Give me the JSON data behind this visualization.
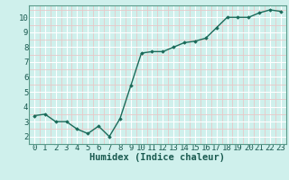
{
  "x": [
    0,
    1,
    2,
    3,
    4,
    5,
    6,
    7,
    8,
    9,
    10,
    11,
    12,
    13,
    14,
    15,
    16,
    17,
    18,
    19,
    20,
    21,
    22,
    23
  ],
  "y": [
    3.4,
    3.5,
    3.0,
    3.0,
    2.5,
    2.2,
    2.7,
    2.0,
    3.2,
    5.4,
    7.6,
    7.7,
    7.7,
    8.0,
    8.3,
    8.4,
    8.6,
    9.3,
    10.0,
    10.0,
    10.0,
    10.3,
    10.5,
    10.4
  ],
  "xlabel": "Humidex (Indice chaleur)",
  "xlim": [
    -0.5,
    23.5
  ],
  "ylim": [
    1.5,
    10.8
  ],
  "yticks": [
    2,
    3,
    4,
    5,
    6,
    7,
    8,
    9,
    10
  ],
  "xticks": [
    0,
    1,
    2,
    3,
    4,
    5,
    6,
    7,
    8,
    9,
    10,
    11,
    12,
    13,
    14,
    15,
    16,
    17,
    18,
    19,
    20,
    21,
    22,
    23
  ],
  "line_color": "#1a6b5a",
  "marker_color": "#1a6b5a",
  "bg_color": "#cff0ec",
  "grid_major_color": "#ffffff",
  "grid_minor_color": "#e8c8c8",
  "xlabel_fontsize": 7.5,
  "tick_fontsize": 6.5
}
